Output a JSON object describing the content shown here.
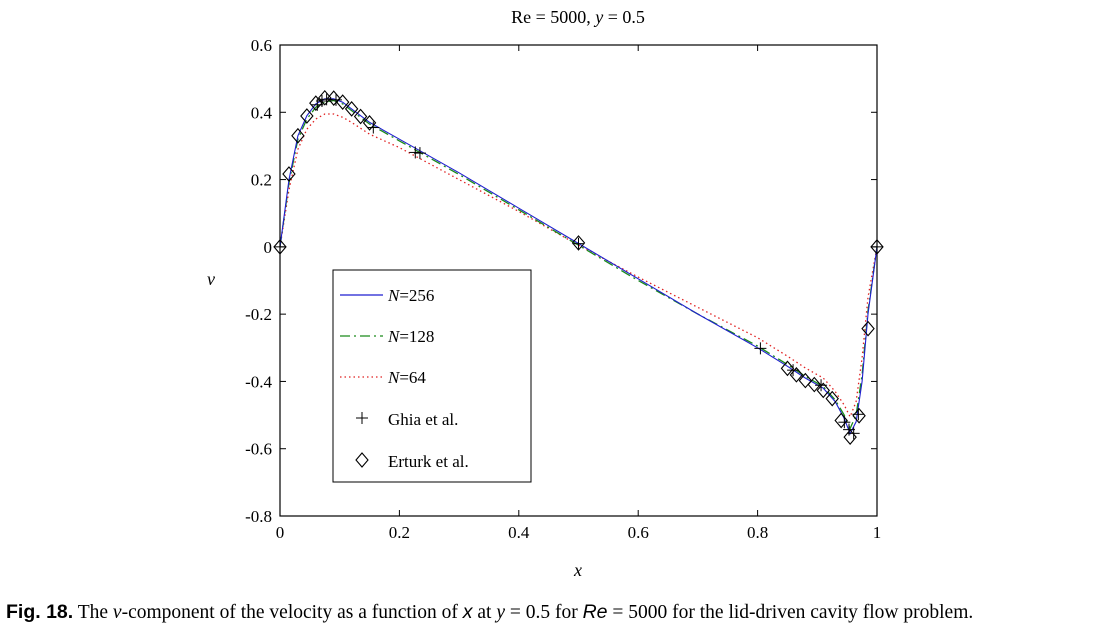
{
  "chart_data": {
    "type": "line",
    "title_prefix": "Re = 5000,",
    "title_var": "y",
    "title_suffix": "= 0.5",
    "xlabel": "x",
    "ylabel": "v",
    "xlim": [
      0,
      1
    ],
    "ylim": [
      -0.8,
      0.6
    ],
    "xticks": [
      0,
      0.2,
      0.4,
      0.6,
      0.8,
      1
    ],
    "xtick_labels": [
      "0",
      "0.2",
      "0.4",
      "0.6",
      "0.8",
      "1"
    ],
    "yticks": [
      0.6,
      0.4,
      0.2,
      0,
      -0.2,
      -0.4,
      -0.6,
      -0.8
    ],
    "ytick_labels": [
      "0.6",
      "0.4",
      "0.2",
      "0",
      "-0.2",
      "-0.4",
      "-0.6",
      "-0.8"
    ],
    "legend_position": "center-left",
    "series": [
      {
        "name": "N=256",
        "legend_var": "N",
        "legend_val": "=256",
        "style": "solid",
        "color": "#1f1fd0",
        "x": [
          0,
          0.015,
          0.03,
          0.045,
          0.06,
          0.075,
          0.09,
          0.105,
          0.12,
          0.15,
          0.2,
          0.3,
          0.4,
          0.5,
          0.6,
          0.7,
          0.8,
          0.85,
          0.88,
          0.91,
          0.93,
          0.945,
          0.955,
          0.965,
          0.975,
          0.985,
          1
        ],
        "y": [
          0,
          0.2,
          0.33,
          0.39,
          0.425,
          0.44,
          0.44,
          0.43,
          0.41,
          0.37,
          0.32,
          0.22,
          0.115,
          0.01,
          -0.095,
          -0.2,
          -0.3,
          -0.355,
          -0.39,
          -0.42,
          -0.46,
          -0.51,
          -0.555,
          -0.52,
          -0.4,
          -0.2,
          0
        ]
      },
      {
        "name": "N=128",
        "legend_var": "N",
        "legend_val": "=128",
        "style": "dashdot",
        "color": "#1a8a1a",
        "x": [
          0,
          0.015,
          0.03,
          0.045,
          0.06,
          0.075,
          0.09,
          0.105,
          0.12,
          0.15,
          0.2,
          0.3,
          0.4,
          0.5,
          0.6,
          0.7,
          0.8,
          0.85,
          0.88,
          0.91,
          0.93,
          0.945,
          0.955,
          0.965,
          0.975,
          0.985,
          1
        ],
        "y": [
          0,
          0.19,
          0.32,
          0.38,
          0.415,
          0.43,
          0.435,
          0.425,
          0.405,
          0.365,
          0.315,
          0.215,
          0.11,
          0.005,
          -0.1,
          -0.2,
          -0.295,
          -0.35,
          -0.385,
          -0.415,
          -0.455,
          -0.5,
          -0.54,
          -0.5,
          -0.38,
          -0.19,
          0
        ]
      },
      {
        "name": "N=64",
        "legend_var": "N",
        "legend_val": "=64",
        "style": "dotted",
        "color": "#e02020",
        "x": [
          0,
          0.015,
          0.03,
          0.045,
          0.06,
          0.075,
          0.09,
          0.105,
          0.12,
          0.15,
          0.2,
          0.3,
          0.4,
          0.5,
          0.6,
          0.7,
          0.8,
          0.85,
          0.88,
          0.91,
          0.93,
          0.945,
          0.955,
          0.965,
          0.975,
          0.985,
          1
        ],
        "y": [
          0,
          0.17,
          0.29,
          0.35,
          0.38,
          0.395,
          0.395,
          0.385,
          0.37,
          0.335,
          0.295,
          0.2,
          0.105,
          0.005,
          -0.09,
          -0.18,
          -0.27,
          -0.325,
          -0.36,
          -0.39,
          -0.43,
          -0.47,
          -0.505,
          -0.46,
          -0.33,
          -0.15,
          0
        ]
      },
      {
        "name": "Ghia et al.",
        "style": "plus-marker",
        "color": "#000000",
        "x": [
          0,
          0.0625,
          0.0703,
          0.0781,
          0.0938,
          0.1563,
          0.2266,
          0.2344,
          0.5,
          0.8047,
          0.8594,
          0.9063,
          0.9453,
          0.9531,
          0.9609,
          0.9688,
          1
        ],
        "y": [
          0,
          0.4223,
          0.4335,
          0.4386,
          0.4369,
          0.3547,
          0.2807,
          0.2787,
          0.0095,
          -0.3017,
          -0.3665,
          -0.4113,
          -0.5212,
          -0.5433,
          -0.5543,
          -0.4977,
          0
        ]
      },
      {
        "name": "Erturk et al.",
        "style": "diamond-marker",
        "color": "#000000",
        "x": [
          0,
          0.015,
          0.03,
          0.045,
          0.06,
          0.075,
          0.09,
          0.105,
          0.12,
          0.135,
          0.15,
          0.5,
          0.85,
          0.865,
          0.88,
          0.895,
          0.91,
          0.925,
          0.94,
          0.955,
          0.97,
          0.985,
          1
        ],
        "y": [
          0,
          0.2166,
          0.3302,
          0.3889,
          0.4272,
          0.443,
          0.4421,
          0.4302,
          0.4102,
          0.3874,
          0.3685,
          0.0117,
          -0.3612,
          -0.3804,
          -0.3975,
          -0.4093,
          -0.4266,
          -0.4511,
          -0.5162,
          -0.5655,
          -0.5021,
          -0.2431,
          0
        ]
      }
    ]
  },
  "caption": {
    "label": "Fig. 18.",
    "t1": "The",
    "var_v": "v",
    "t2": "-component of the velocity as a function of",
    "var_x": "x",
    "t3": "at",
    "var_y": "y",
    "t4": "= 0.5 for",
    "re": "Re",
    "t5": "= 5000 for the lid-driven cavity flow problem."
  }
}
